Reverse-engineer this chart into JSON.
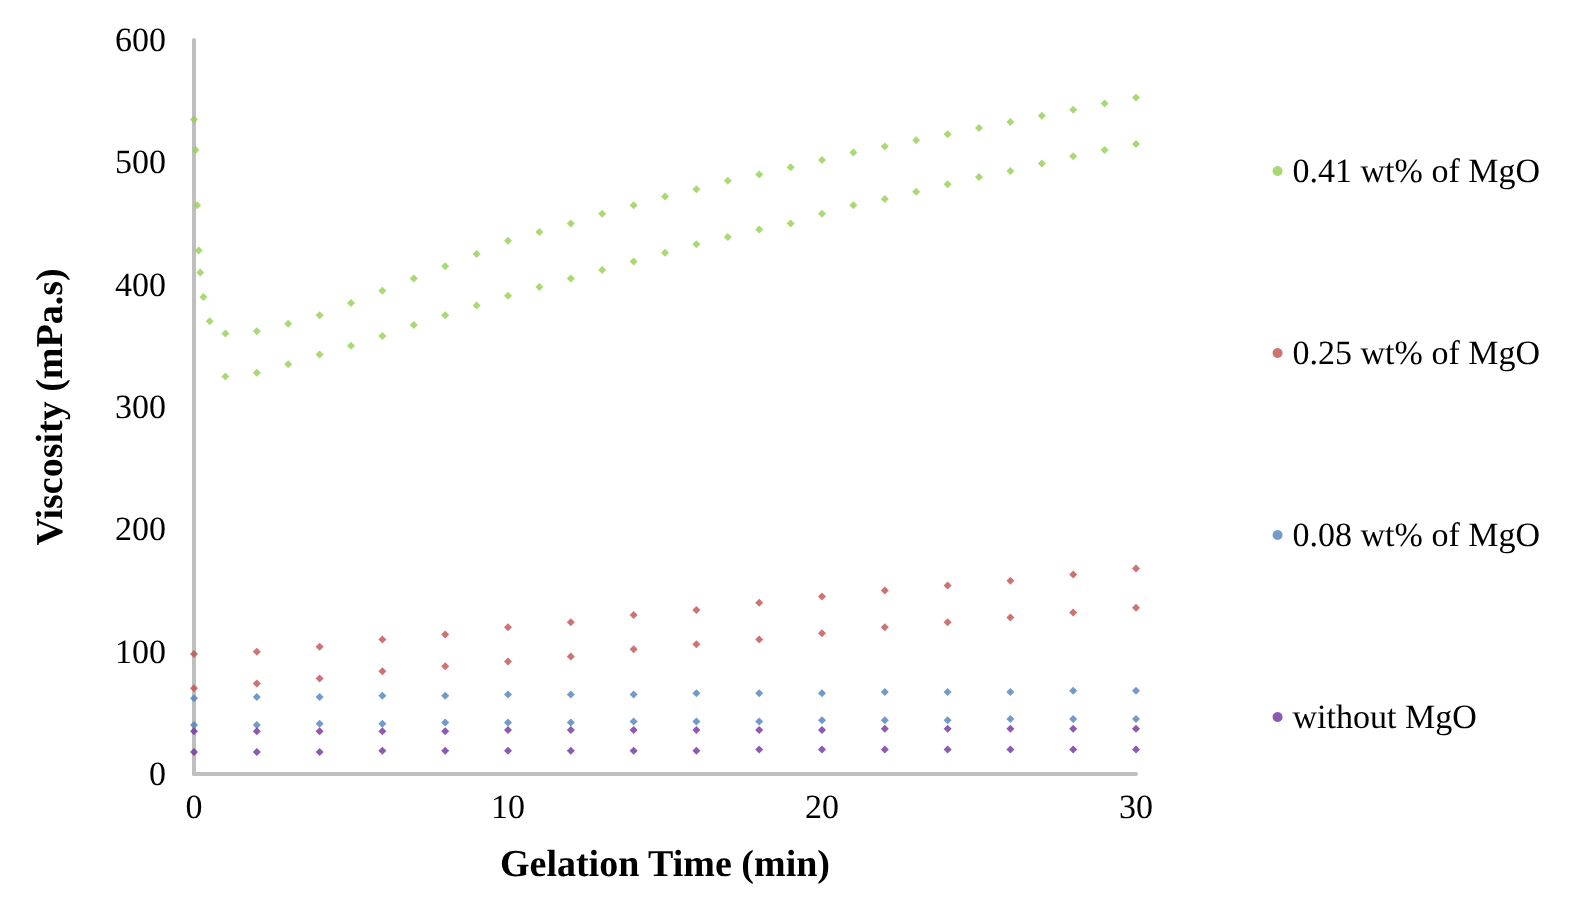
{
  "chart_data": {
    "type": "scatter",
    "xlabel": "Gelation Time (min)",
    "ylabel": "Viscosity (mPa.s)",
    "xlim": [
      0,
      30
    ],
    "xticks": [
      0,
      10,
      20,
      30
    ],
    "ylim": [
      0,
      600
    ],
    "yticks": [
      0,
      100,
      200,
      300,
      400,
      500,
      600
    ],
    "grid": false,
    "legend": "right",
    "marker": "diamond",
    "series": [
      {
        "name": "0.41 wt% of MgO",
        "color": "#92d050",
        "x": [
          0,
          0.05,
          0.1,
          0.15,
          0.2,
          0.3,
          0.5,
          1,
          2,
          3,
          4,
          5,
          6,
          7,
          8,
          9,
          10,
          11,
          12,
          13,
          14,
          15,
          16,
          17,
          18,
          19,
          20,
          21,
          22,
          23,
          24,
          25,
          26,
          27,
          28,
          29,
          30,
          1,
          2,
          3,
          4,
          5,
          6,
          7,
          8,
          9,
          10,
          11,
          12,
          13,
          14,
          15,
          16,
          17,
          18,
          19,
          20,
          21,
          22,
          23,
          24,
          25,
          26,
          27,
          28,
          29,
          30
        ],
        "values": [
          535,
          510,
          465,
          428,
          410,
          390,
          370,
          360,
          362,
          368,
          375,
          385,
          395,
          405,
          415,
          425,
          436,
          443,
          450,
          458,
          465,
          472,
          478,
          485,
          490,
          496,
          502,
          508,
          513,
          518,
          523,
          528,
          533,
          538,
          543,
          548,
          553,
          325,
          328,
          335,
          343,
          350,
          358,
          367,
          375,
          383,
          391,
          398,
          405,
          412,
          419,
          426,
          433,
          439,
          445,
          450,
          458,
          465,
          470,
          476,
          482,
          488,
          493,
          499,
          505,
          510,
          515
        ]
      },
      {
        "name": "0.25 wt% of MgO",
        "color": "#c0504d",
        "x": [
          0,
          2,
          4,
          6,
          8,
          10,
          12,
          14,
          16,
          18,
          20,
          22,
          24,
          26,
          28,
          30,
          0,
          2,
          4,
          6,
          8,
          10,
          12,
          14,
          16,
          18,
          20,
          22,
          24,
          26,
          28,
          30
        ],
        "values": [
          98,
          100,
          104,
          110,
          114,
          120,
          124,
          130,
          134,
          140,
          145,
          150,
          154,
          158,
          163,
          168,
          70,
          74,
          78,
          84,
          88,
          92,
          96,
          102,
          106,
          110,
          115,
          120,
          124,
          128,
          132,
          136
        ]
      },
      {
        "name": "0.08 wt% of MgO",
        "color": "#4f81bd",
        "x": [
          0,
          2,
          4,
          6,
          8,
          10,
          12,
          14,
          16,
          18,
          20,
          22,
          24,
          26,
          28,
          30,
          0,
          2,
          4,
          6,
          8,
          10,
          12,
          14,
          16,
          18,
          20,
          22,
          24,
          26,
          28,
          30
        ],
        "values": [
          62,
          63,
          63,
          64,
          64,
          65,
          65,
          65,
          66,
          66,
          66,
          67,
          67,
          67,
          68,
          68,
          40,
          40,
          41,
          41,
          42,
          42,
          42,
          43,
          43,
          43,
          44,
          44,
          44,
          45,
          45,
          45
        ]
      },
      {
        "name": "without MgO",
        "color": "#7030a0",
        "x": [
          0,
          2,
          4,
          6,
          8,
          10,
          12,
          14,
          16,
          18,
          20,
          22,
          24,
          26,
          28,
          30,
          0,
          2,
          4,
          6,
          8,
          10,
          12,
          14,
          16,
          18,
          20,
          22,
          24,
          26,
          28,
          30
        ],
        "values": [
          35,
          35,
          35,
          35,
          35,
          36,
          36,
          36,
          36,
          36,
          36,
          37,
          37,
          37,
          37,
          37,
          18,
          18,
          18,
          19,
          19,
          19,
          19,
          19,
          19,
          20,
          20,
          20,
          20,
          20,
          20,
          20
        ]
      }
    ]
  }
}
